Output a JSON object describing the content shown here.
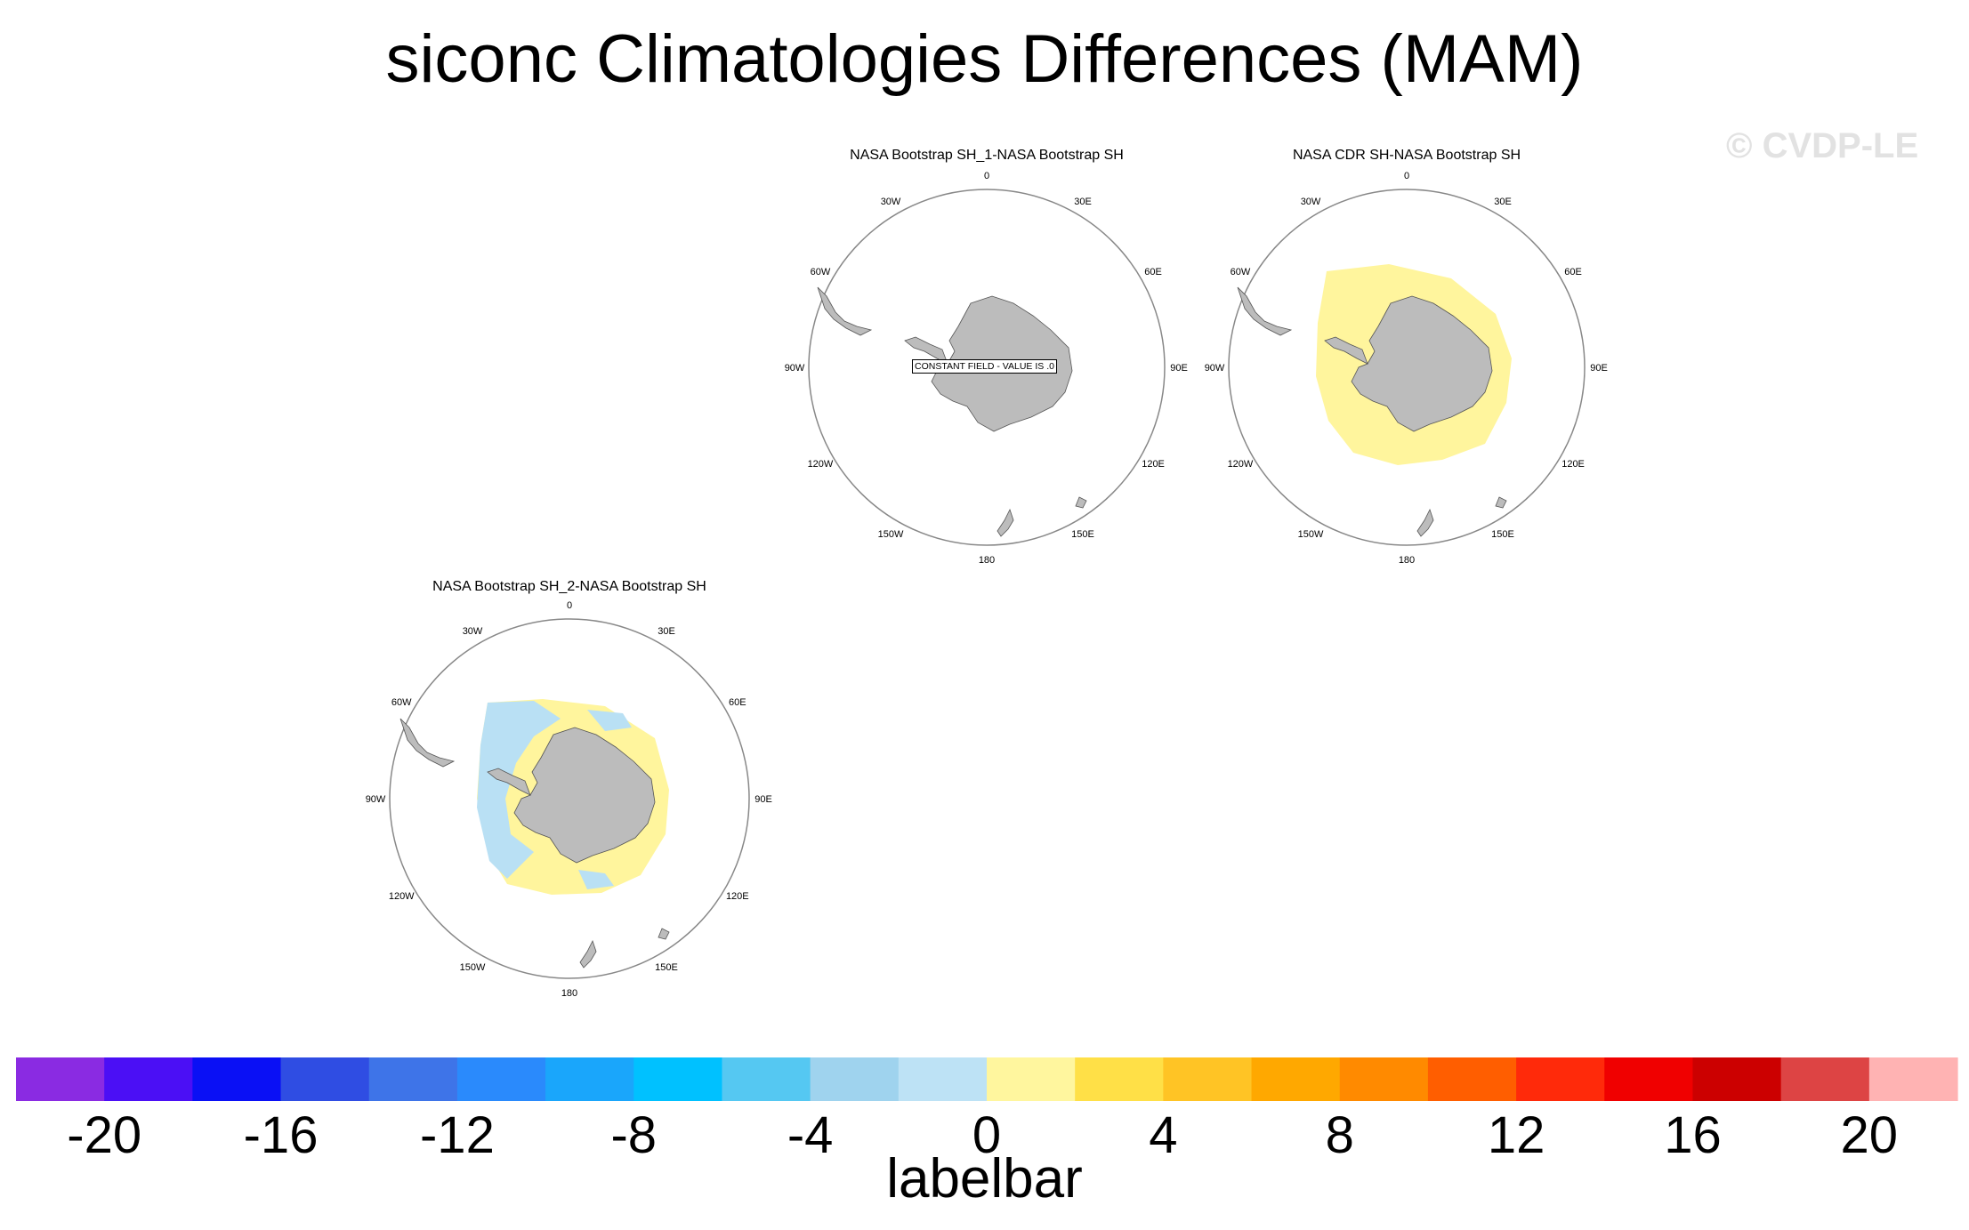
{
  "title": "siconc Climatologies Differences (MAM)",
  "watermark": "© CVDP-LE",
  "colors": {
    "land": "#bcbcbc",
    "positive_fill": "#fff59d",
    "negative_fill": "#b9e0f4",
    "outline": "#888888"
  },
  "panels": [
    {
      "id": "p1",
      "title": "NASA Bootstrap SH_1-NASA Bootstrap SH",
      "annotation": "CONSTANT FIELD - VALUE IS .0",
      "longitude_labels": [
        "0",
        "30E",
        "60E",
        "90E",
        "120E",
        "150E",
        "180",
        "150W",
        "120W",
        "90W",
        "60W",
        "30W"
      ]
    },
    {
      "id": "p2",
      "title": "NASA CDR SH-NASA Bootstrap SH",
      "longitude_labels": [
        "0",
        "30E",
        "60E",
        "90E",
        "120E",
        "150E",
        "180",
        "150W",
        "120W",
        "90W",
        "60W",
        "30W"
      ]
    },
    {
      "id": "p3",
      "title": "NASA Bootstrap SH_2-NASA Bootstrap SH",
      "longitude_labels": [
        "0",
        "30E",
        "60E",
        "90E",
        "120E",
        "150E",
        "180",
        "150W",
        "120W",
        "90W",
        "60W",
        "30W"
      ]
    }
  ],
  "chart_data": {
    "type": "heatmap",
    "title": "siconc Climatologies Differences (MAM)",
    "projection": "south-polar-stereographic",
    "colorbar": {
      "label": "labelbar",
      "levels": [
        -20,
        -18,
        -16,
        -14,
        -12,
        -10,
        -8,
        -6,
        -4,
        -2,
        0,
        2,
        4,
        6,
        8,
        10,
        12,
        14,
        16,
        18,
        20
      ],
      "tick_labels": [
        "-20",
        "-16",
        "-12",
        "-8",
        "-4",
        "0",
        "4",
        "8",
        "12",
        "16",
        "20"
      ],
      "tick_values": [
        -20,
        -16,
        -12,
        -8,
        -4,
        0,
        4,
        8,
        12,
        16,
        20
      ],
      "colors": [
        "#8a2be2",
        "#4b0ff5",
        "#0a10f5",
        "#2f4de3",
        "#3e74e8",
        "#2a8afc",
        "#1aa6fb",
        "#00c1ff",
        "#55c8f2",
        "#9fd3ee",
        "#bde2f5",
        "#fff69e",
        "#ffe047",
        "#ffc425",
        "#ffa800",
        "#ff8a00",
        "#ff5e00",
        "#ff2a0a",
        "#f00000",
        "#cc0000",
        "#dd4444",
        "#ffb3b3"
      ]
    },
    "panels": [
      {
        "title": "NASA Bootstrap SH_1-NASA Bootstrap SH",
        "field": "constant",
        "value": 0.0
      },
      {
        "title": "NASA CDR SH-NASA Bootstrap SH",
        "field": "ring",
        "dominant_range": [
          0,
          2
        ]
      },
      {
        "title": "NASA Bootstrap SH_2-NASA Bootstrap SH",
        "field": "mixed",
        "dominant_ranges": [
          [
            -2,
            0
          ],
          [
            0,
            2
          ]
        ]
      }
    ]
  }
}
